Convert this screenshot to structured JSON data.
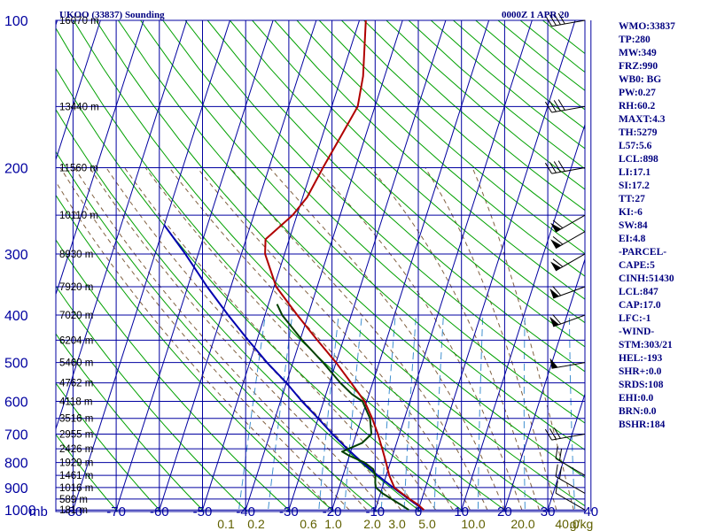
{
  "header": {
    "station": "UKOO (33837) Sounding",
    "time": "0000Z  1 APR 20"
  },
  "stats": [
    "WMO:33837",
    "TP:280",
    "MW:349",
    "FRZ:990",
    "WB0: BG",
    "PW:0.27",
    "RH:60.2",
    "MAXT:4.3",
    "TH:5279",
    "L57:5.6",
    "LCL:898",
    "LI:17.1",
    "SI:17.2",
    "TT:27",
    "KI:-6",
    "SW:84",
    "EI:4.8",
    "-PARCEL-",
    "CAPE:5",
    "CINH:51430",
    "LCL:847",
    "CAP:17.0",
    "LFC:-1",
    "-WIND-",
    "STM:303/21",
    "HEL:-193",
    "SHR+:0.0",
    "SRDS:108",
    "EHI:0.0",
    "BRN:0.0",
    "BSHR:184"
  ],
  "colors": {
    "background": "#ffffff",
    "pressure_lines": "#0000a0",
    "isotherms": "#0000a0",
    "dry_adiabats": "#00a000",
    "moist_adiabats": "#806040",
    "mixing_ratio": "#4090d0",
    "temperature": "#b00000",
    "dewpoint": "#004000",
    "parcel": "#0000b0",
    "header_text": "#000080",
    "mixing_labels": "#606000",
    "wind_barbs": "#000000"
  },
  "chart_data": {
    "type": "line",
    "title": "UKOO (33837) Sounding",
    "xlabel": "mb",
    "x_ticks": [
      "-80",
      "-70",
      "-60",
      "-50",
      "-40",
      "-30",
      "-20",
      "-10",
      "0",
      "10",
      "20",
      "30",
      "40"
    ],
    "y_ticks": [
      "100",
      "200",
      "300",
      "400",
      "500",
      "600",
      "700",
      "800",
      "900",
      "1000"
    ],
    "mixing_ratio_labels": [
      "0.1",
      "0.2",
      "0.6",
      "1.0",
      "2.0",
      "3.0",
      "5.0",
      "10.0",
      "20.0",
      "40.0",
      "g/kg"
    ],
    "height_labels": [
      {
        "p": 100,
        "label": "16070 m"
      },
      {
        "p": 150,
        "label": "13440 m"
      },
      {
        "p": 200,
        "label": "11560 m"
      },
      {
        "p": 250,
        "label": "10110 m"
      },
      {
        "p": 300,
        "label": "8930 m"
      },
      {
        "p": 350,
        "label": "7920 m"
      },
      {
        "p": 400,
        "label": "7020 m"
      },
      {
        "p": 450,
        "label": "6204 m"
      },
      {
        "p": 500,
        "label": "5460 m"
      },
      {
        "p": 550,
        "label": "4762 m"
      },
      {
        "p": 600,
        "label": "4118 m"
      },
      {
        "p": 650,
        "label": "3516 m"
      },
      {
        "p": 700,
        "label": "2955 m"
      },
      {
        "p": 750,
        "label": "2426 m"
      },
      {
        "p": 800,
        "label": "1929 m"
      },
      {
        "p": 850,
        "label": "1461 m"
      },
      {
        "p": 900,
        "label": "1016 m"
      },
      {
        "p": 950,
        "label": "589 m"
      },
      {
        "p": 1000,
        "label": "181 m"
      }
    ],
    "temperature": [
      {
        "p": 1000,
        "t": 1.3
      },
      {
        "p": 975,
        "t": -0.5
      },
      {
        "p": 950,
        "t": -2.8
      },
      {
        "p": 925,
        "t": -5.0
      },
      {
        "p": 900,
        "t": -7.2
      },
      {
        "p": 850,
        "t": -9.3
      },
      {
        "p": 800,
        "t": -11.0
      },
      {
        "p": 760,
        "t": -12.5
      },
      {
        "p": 700,
        "t": -15.0
      },
      {
        "p": 650,
        "t": -17.5
      },
      {
        "p": 600,
        "t": -20.5
      },
      {
        "p": 550,
        "t": -25.0
      },
      {
        "p": 500,
        "t": -30.0
      },
      {
        "p": 450,
        "t": -36.0
      },
      {
        "p": 400,
        "t": -42.5
      },
      {
        "p": 350,
        "t": -49.5
      },
      {
        "p": 300,
        "t": -54.5
      },
      {
        "p": 280,
        "t": -55.5
      },
      {
        "p": 250,
        "t": -51.0
      },
      {
        "p": 230,
        "t": -49.0
      },
      {
        "p": 200,
        "t": -47.5
      },
      {
        "p": 170,
        "t": -45.5
      },
      {
        "p": 150,
        "t": -44.0
      },
      {
        "p": 130,
        "t": -45.0
      },
      {
        "p": 100,
        "t": -48.5
      }
    ],
    "dewpoint": [
      {
        "p": 1000,
        "t": -2.2
      },
      {
        "p": 975,
        "t": -4.5
      },
      {
        "p": 950,
        "t": -7.0
      },
      {
        "p": 925,
        "t": -9.5
      },
      {
        "p": 900,
        "t": -11.5
      },
      {
        "p": 880,
        "t": -12.0
      },
      {
        "p": 850,
        "t": -12.5
      },
      {
        "p": 825,
        "t": -13.5
      },
      {
        "p": 800,
        "t": -16.0
      },
      {
        "p": 775,
        "t": -20.0
      },
      {
        "p": 760,
        "t": -22.0
      },
      {
        "p": 730,
        "t": -18.0
      },
      {
        "p": 700,
        "t": -16.5
      },
      {
        "p": 650,
        "t": -18.0
      },
      {
        "p": 600,
        "t": -21.0
      },
      {
        "p": 580,
        "t": -24.0
      },
      {
        "p": 550,
        "t": -27.5
      },
      {
        "p": 500,
        "t": -33.0
      },
      {
        "p": 450,
        "t": -39.5
      },
      {
        "p": 400,
        "t": -46.0
      },
      {
        "p": 380,
        "t": -48.0
      }
    ],
    "parcel": [
      {
        "p": 1000,
        "t": 1.3
      },
      {
        "p": 950,
        "t": -3.0
      },
      {
        "p": 900,
        "t": -7.5
      },
      {
        "p": 850,
        "t": -12.0
      },
      {
        "p": 800,
        "t": -16.5
      },
      {
        "p": 750,
        "t": -21.0
      },
      {
        "p": 700,
        "t": -25.5
      },
      {
        "p": 650,
        "t": -30.0
      },
      {
        "p": 600,
        "t": -35.0
      },
      {
        "p": 550,
        "t": -40.0
      },
      {
        "p": 500,
        "t": -46.0
      },
      {
        "p": 450,
        "t": -52.0
      },
      {
        "p": 400,
        "t": -58.5
      },
      {
        "p": 350,
        "t": -65.5
      },
      {
        "p": 300,
        "t": -73.0
      },
      {
        "p": 262,
        "t": -80.0
      }
    ],
    "winds": [
      {
        "p": 1000,
        "dir": 300,
        "speed": 10
      },
      {
        "p": 925,
        "dir": 300,
        "speed": 20
      },
      {
        "p": 850,
        "dir": 300,
        "speed": 20
      },
      {
        "p": 700,
        "dir": 260,
        "speed": 30
      },
      {
        "p": 500,
        "dir": 260,
        "speed": 50
      },
      {
        "p": 400,
        "dir": 250,
        "speed": 60
      },
      {
        "p": 350,
        "dir": 250,
        "speed": 60
      },
      {
        "p": 300,
        "dir": 240,
        "speed": 60
      },
      {
        "p": 270,
        "dir": 240,
        "speed": 60
      },
      {
        "p": 250,
        "dir": 240,
        "speed": 60
      },
      {
        "p": 200,
        "dir": 260,
        "speed": 40
      },
      {
        "p": 150,
        "dir": 260,
        "speed": 40
      },
      {
        "p": 100,
        "dir": 260,
        "speed": 40
      }
    ],
    "ylim": [
      100,
      1000
    ],
    "xlim": [
      -80,
      40
    ],
    "grid": true,
    "legend": "none"
  }
}
